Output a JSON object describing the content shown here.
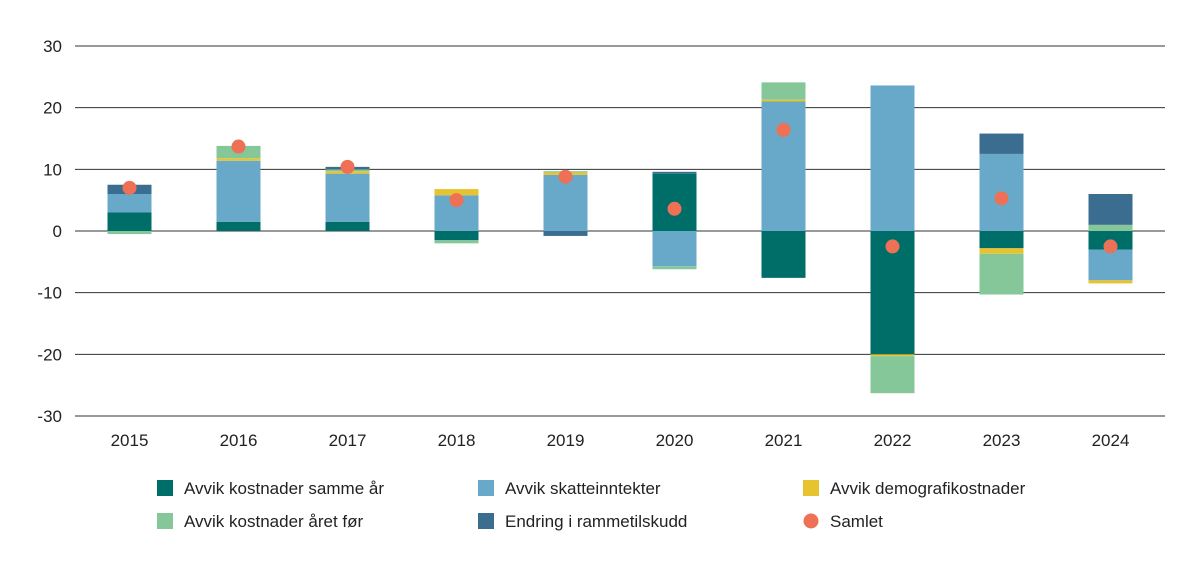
{
  "chart_data": {
    "type": "bar",
    "stacked": true,
    "title": "",
    "xlabel": "",
    "ylabel": "",
    "ylim": [
      -30,
      30
    ],
    "yticks": [
      30,
      20,
      10,
      0,
      -10,
      -20,
      -30
    ],
    "ytick_labels": [
      "30",
      "20",
      "10",
      "0",
      "-10",
      "-20",
      "-30"
    ],
    "grid": true,
    "legend_position": "bottom",
    "categories": [
      "2015",
      "2016",
      "2017",
      "2018",
      "2019",
      "2020",
      "2021",
      "2022",
      "2023",
      "2024"
    ],
    "series": [
      {
        "name": "Avvik kostnader samme år",
        "color": "#006e68",
        "values": [
          3.0,
          1.5,
          1.5,
          -1.5,
          0.0,
          9.3,
          -7.6,
          -20.0,
          -2.8,
          -3.0
        ]
      },
      {
        "name": "Avvik skatteinntekter",
        "color": "#68a9c9",
        "values": [
          3.0,
          9.9,
          7.8,
          5.8,
          9.1,
          -5.7,
          21.0,
          23.6,
          12.5,
          -5.0
        ]
      },
      {
        "name": "Avvik demografikostnader",
        "color": "#e8c330",
        "values": [
          0.0,
          0.4,
          0.4,
          1.0,
          0.4,
          0.0,
          0.3,
          -0.3,
          -0.9,
          -0.5
        ]
      },
      {
        "name": "Avvik kostnader året før",
        "color": "#86c79a",
        "values": [
          -0.5,
          2.0,
          0.3,
          -0.5,
          0.2,
          -0.5,
          2.8,
          -6.0,
          -6.6,
          1.0
        ]
      },
      {
        "name": "Endring i rammetilskudd",
        "color": "#3a6d90",
        "values": [
          1.5,
          0.0,
          0.4,
          0.0,
          -0.8,
          0.3,
          0.0,
          0.0,
          3.3,
          5.0
        ]
      }
    ],
    "marker_series": {
      "name": "Samlet",
      "color": "#ee7055",
      "values": [
        7.0,
        13.7,
        10.4,
        5.0,
        8.8,
        3.6,
        16.4,
        -2.5,
        5.3,
        -2.5
      ]
    },
    "legend": [
      [
        "Avvik kostnader samme år",
        "Avvik skatteinntekter",
        "Avvik demografikostnader"
      ],
      [
        "Avvik kostnader året før",
        "Endring i rammetilskudd",
        "Samlet"
      ]
    ]
  }
}
